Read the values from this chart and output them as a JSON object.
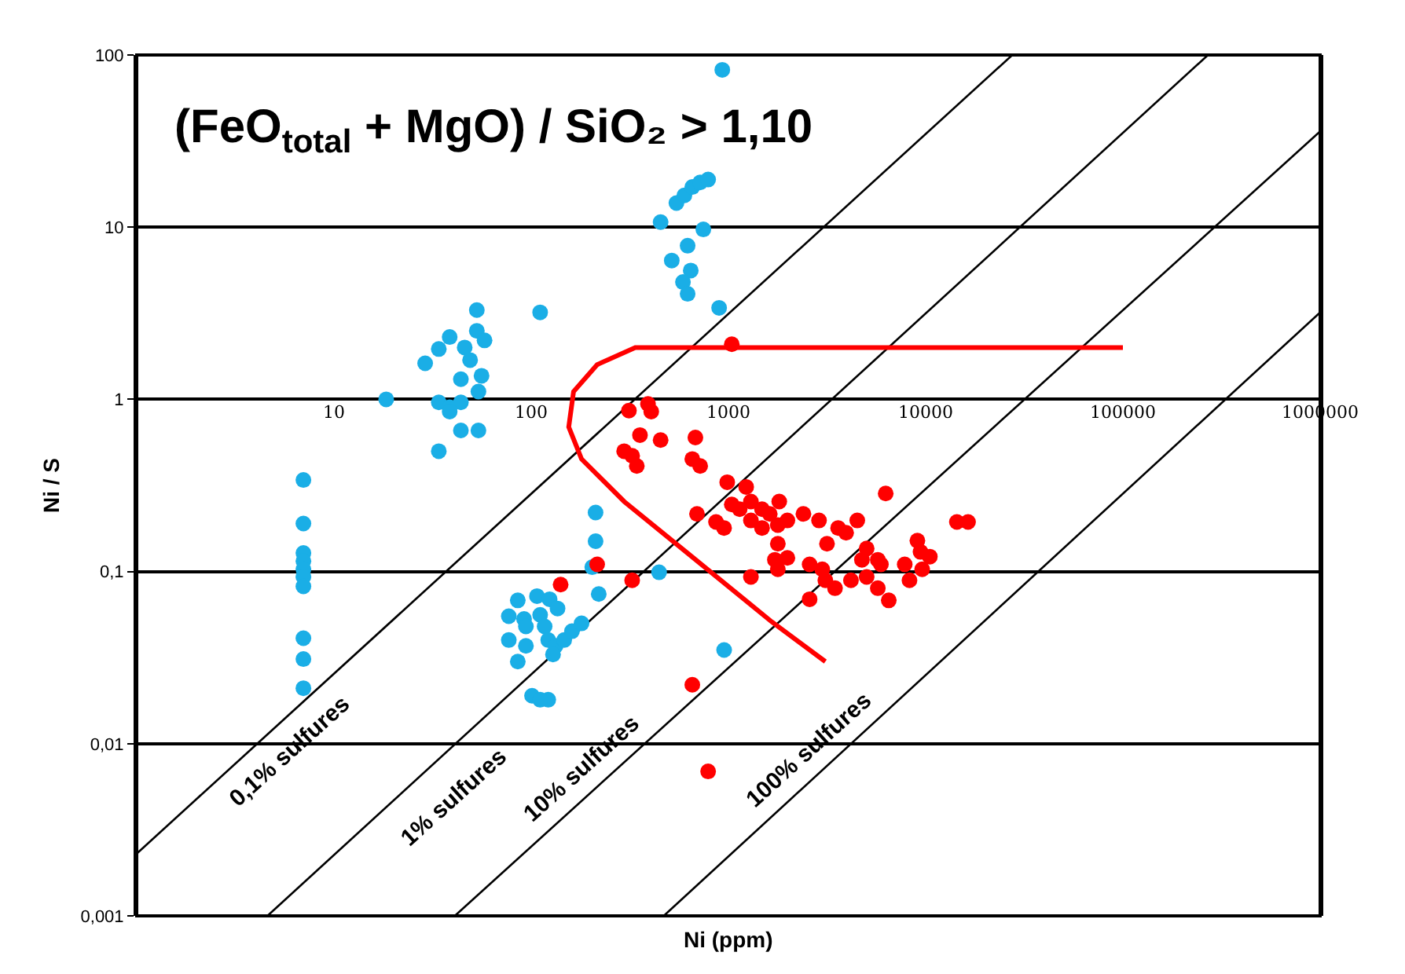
{
  "chart_data": {
    "type": "scatter",
    "title": "(FeO$_{total}$ + MgO) / SiO₂ > 1,10",
    "xlabel": "Ni (ppm)",
    "ylabel": "Ni / S",
    "log": "xy",
    "grid": "y",
    "marker": "circle",
    "xlim": [
      1,
      1000000
    ],
    "xticks": [
      10,
      100,
      1000,
      10000,
      100000,
      1000000
    ],
    "ylim": [
      0.001,
      100
    ],
    "yticks": [
      {
        "value": 0.001,
        "label": "0,001"
      },
      {
        "value": 0.01,
        "label": "0,01"
      },
      {
        "value": 0.1,
        "label": "0,1"
      },
      1,
      10,
      100
    ],
    "series": [
      {
        "type": "line",
        "marker": "none",
        "color": "#000000",
        "x": [
          1,
          27500
        ],
        "values": [
          0.0023,
          100
        ]
      },
      {
        "type": "line",
        "marker": "none",
        "color": "#000000",
        "x": [
          4.6,
          270000
        ],
        "values": [
          0.001,
          100
        ]
      },
      {
        "type": "line",
        "marker": "none",
        "color": "#000000",
        "x": [
          41,
          1000000
        ],
        "values": [
          0.001,
          36
        ]
      },
      {
        "type": "line",
        "marker": "none",
        "color": "#000000",
        "x": [
          470,
          1000000
        ],
        "values": [
          0.001,
          3.2
        ]
      },
      {
        "type": "line",
        "marker": "none",
        "color": "#ff0000",
        "x": [
          3100,
          1660,
          620,
          296,
          180,
          155,
          164,
          216,
          337,
          620,
          100000
        ],
        "values": [
          0.03,
          0.051,
          0.128,
          0.255,
          0.45,
          0.69,
          1.11,
          1.59,
          2,
          2,
          2
        ]
      },
      {
        "color": "#1aaee6",
        "x": [
          931,
          545,
          598,
          656,
          719,
          789,
          453,
          746,
          621,
          516,
          644,
          588,
          621,
          897,
          111,
          53,
          38.6,
          53,
          34,
          46,
          58,
          29,
          49,
          56,
          44,
          18.4,
          34,
          38.6,
          44,
          38.6,
          54,
          44,
          54,
          34,
          7,
          7,
          7,
          7,
          7,
          7,
          7,
          7,
          7,
          7,
          85.5,
          107,
          124,
          136,
          77,
          92,
          111,
          117,
          94,
          77,
          94,
          85.5,
          122,
          133,
          129,
          147,
          161,
          180,
          101,
          122,
          111,
          212,
          212,
          204,
          220,
          445,
          951
        ],
        "values": [
          82,
          13.8,
          15.3,
          17.1,
          18.2,
          18.9,
          10.7,
          9.7,
          7.8,
          6.4,
          5.6,
          4.8,
          4.1,
          3.4,
          3.2,
          3.3,
          2.3,
          2.5,
          1.96,
          2.0,
          2.2,
          1.62,
          1.69,
          1.37,
          1.31,
          1.0,
          0.96,
          0.9,
          0.96,
          0.85,
          1.11,
          0.66,
          0.66,
          0.5,
          0.34,
          0.19,
          0.128,
          0.115,
          0.103,
          0.093,
          0.082,
          0.041,
          0.031,
          0.021,
          0.068,
          0.072,
          0.069,
          0.061,
          0.055,
          0.053,
          0.056,
          0.048,
          0.048,
          0.04,
          0.037,
          0.03,
          0.04,
          0.037,
          0.033,
          0.04,
          0.045,
          0.05,
          0.019,
          0.018,
          0.018,
          0.22,
          0.15,
          0.106,
          0.074,
          0.099,
          0.035
        ]
      },
      {
        "color": "#ff0000",
        "x": [
          313,
          391,
          406,
          356,
          453,
          680,
          296,
          325,
          343,
          656,
          719,
          1040,
          986,
          1230,
          1040,
          1140,
          1300,
          1480,
          1810,
          1620,
          1300,
          1480,
          1780,
          1990,
          2400,
          2880,
          865,
          950,
          693,
          6270,
          3600,
          3950,
          4500,
          3160,
          5020,
          5720,
          4750,
          9080,
          9420,
          10500,
          9600,
          7830,
          14400,
          16400,
          1720,
          1990,
          1780,
          2580,
          2990,
          3100,
          3470,
          4180,
          5020,
          5720,
          5930,
          6500,
          8280,
          2580,
          1300,
          325,
          141,
          216,
          656,
          789,
          1780
        ],
        "values": [
          0.86,
          0.94,
          0.85,
          0.62,
          0.58,
          0.6,
          0.5,
          0.47,
          0.41,
          0.45,
          0.41,
          2.09,
          0.33,
          0.31,
          0.245,
          0.23,
          0.255,
          0.23,
          0.255,
          0.216,
          0.198,
          0.179,
          0.186,
          0.198,
          0.216,
          0.198,
          0.194,
          0.179,
          0.216,
          0.284,
          0.179,
          0.168,
          0.198,
          0.145,
          0.136,
          0.117,
          0.117,
          0.151,
          0.13,
          0.122,
          0.103,
          0.11,
          0.194,
          0.194,
          0.117,
          0.12,
          0.103,
          0.11,
          0.103,
          0.089,
          0.08,
          0.089,
          0.093,
          0.08,
          0.11,
          0.068,
          0.089,
          0.069,
          0.093,
          0.089,
          0.084,
          0.11,
          0.022,
          0.0069,
          0.145
        ]
      }
    ],
    "annotations": [
      "0,1% sulfures",
      "1% sulfures",
      "10% sulfures",
      "100% sulfures"
    ]
  }
}
